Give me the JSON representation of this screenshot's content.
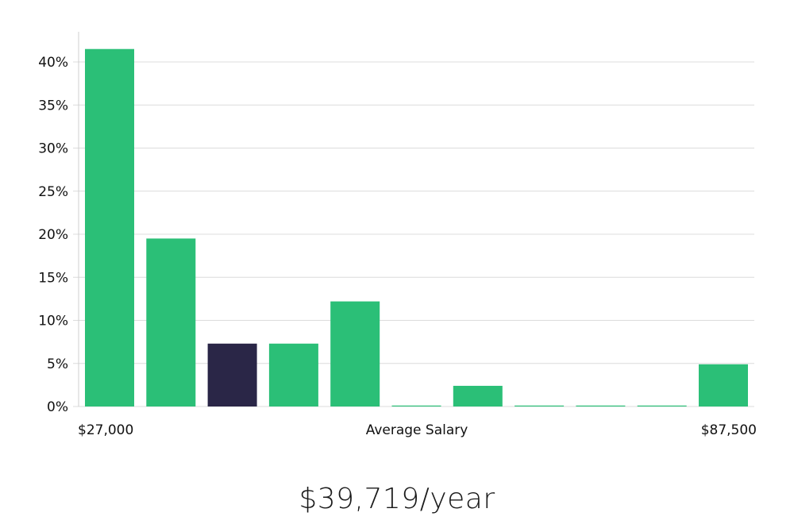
{
  "chart_data": {
    "type": "bar",
    "title": "",
    "xlabel": "Average Salary",
    "ylabel": "",
    "x_start_label": "$27,000",
    "x_end_label": "$87,500",
    "y_ticks": [
      "0%",
      "5%",
      "10%",
      "15%",
      "20%",
      "25%",
      "30%",
      "35%",
      "40%"
    ],
    "ylim": [
      0,
      43
    ],
    "values": [
      41.5,
      19.5,
      7.3,
      7.3,
      12.2,
      0,
      2.4,
      0,
      0,
      0,
      4.9
    ],
    "highlight_index": 2,
    "colors": {
      "bar": "#2bbf77",
      "highlight": "#2a2647"
    }
  },
  "summary": {
    "average_salary": "$39,719/year"
  }
}
